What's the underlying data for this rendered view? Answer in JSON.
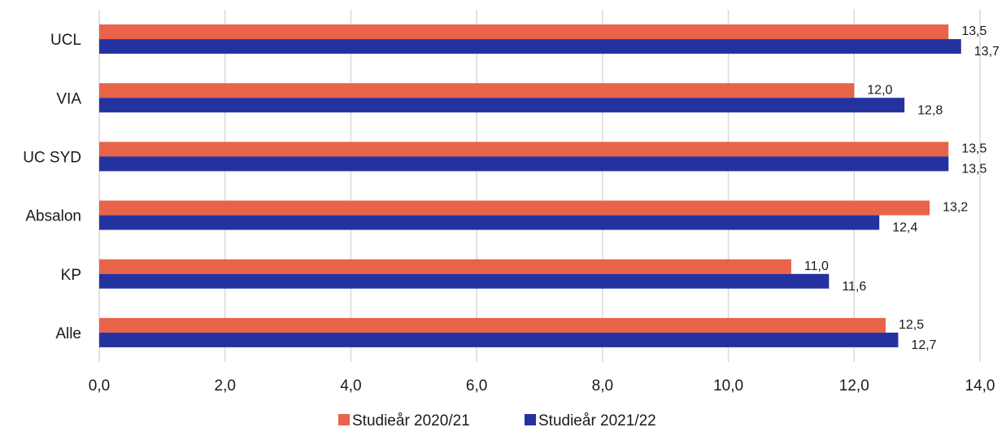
{
  "chart_data": {
    "type": "bar",
    "orientation": "horizontal",
    "title": "",
    "xlabel": "",
    "ylabel": "",
    "categories": [
      "UCL",
      "VIA",
      "UC SYD",
      "Absalon",
      "KP",
      "Alle"
    ],
    "series": [
      {
        "name": "Studieår 2020/21",
        "color": "#E8634A",
        "values": [
          13.5,
          12.0,
          13.5,
          13.2,
          11.0,
          12.5
        ],
        "labels": [
          "13,5",
          "12,0",
          "13,5",
          "13,2",
          "11,0",
          "12,5"
        ]
      },
      {
        "name": "Studieår 2021/22",
        "color": "#2432A0",
        "values": [
          13.7,
          12.8,
          13.5,
          12.4,
          11.6,
          12.7
        ],
        "labels": [
          "13,7",
          "12,8",
          "13,5",
          "12,4",
          "11,6",
          "12,7"
        ]
      }
    ],
    "xlim": [
      0,
      14
    ],
    "xticks": [
      0,
      2,
      4,
      6,
      8,
      10,
      12,
      14
    ],
    "xtick_labels": [
      "0,0",
      "2,0",
      "4,0",
      "6,0",
      "8,0",
      "10,0",
      "12,0",
      "14,0"
    ],
    "grid": true,
    "legend_position": "bottom"
  }
}
